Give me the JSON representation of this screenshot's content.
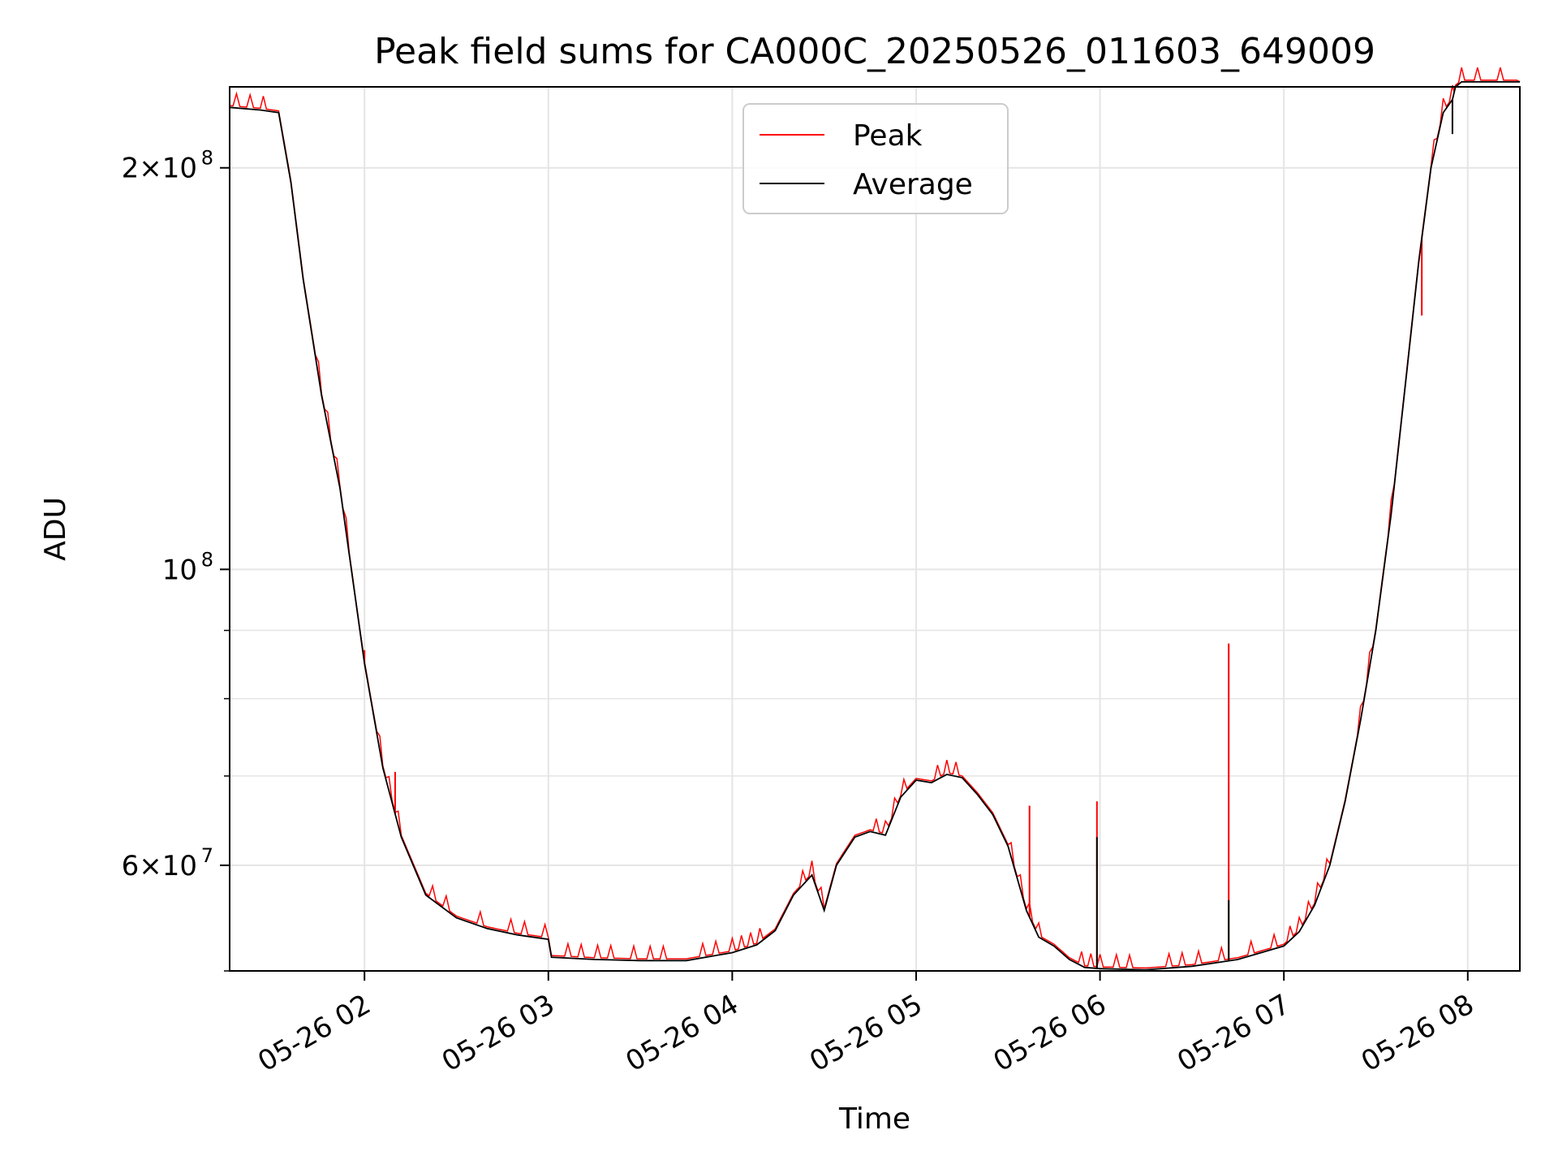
{
  "chart_data": {
    "type": "line",
    "title": "Peak field sums for CA000C_20250526_011603_649009",
    "xlabel": "Time",
    "ylabel": "ADU",
    "x_ticks": [
      {
        "time": "2025-05-26 02:00",
        "label": "05-26 02"
      },
      {
        "time": "2025-05-26 03:00",
        "label": "05-26 03"
      },
      {
        "time": "2025-05-26 04:00",
        "label": "05-26 04"
      },
      {
        "time": "2025-05-26 05:00",
        "label": "05-26 05"
      },
      {
        "time": "2025-05-26 06:00",
        "label": "05-26 06"
      },
      {
        "time": "2025-05-26 07:00",
        "label": "05-26 07"
      },
      {
        "time": "2025-05-26 08:00",
        "label": "05-26 08"
      }
    ],
    "y_ticks": [
      {
        "value": 60000000,
        "mant": "6×10",
        "exp": "7"
      },
      {
        "value": 100000000,
        "mant": "10",
        "exp": "8"
      },
      {
        "value": 200000000,
        "mant": "2×10",
        "exp": "8"
      }
    ],
    "y_minor_ticks": [
      50000000,
      70000000,
      80000000,
      90000000
    ],
    "xlim": [
      "2025-05-26 01:16",
      "2025-05-26 08:17"
    ],
    "ylim": [
      50000000,
      230000000
    ],
    "y_scale": "log",
    "grid": true,
    "legend": {
      "placement": "upper center",
      "entries": [
        "Peak",
        "Average"
      ]
    },
    "series": [
      {
        "name": "Average",
        "color": "#000000",
        "x": [
          "2025-05-26 01:16",
          "2025-05-26 01:26",
          "2025-05-26 01:32",
          "2025-05-26 01:36",
          "2025-05-26 01:40",
          "2025-05-26 01:46",
          "2025-05-26 01:52",
          "2025-05-26 02:00",
          "2025-05-26 02:06",
          "2025-05-26 02:12",
          "2025-05-26 02:20",
          "2025-05-26 02:30",
          "2025-05-26 02:40",
          "2025-05-26 02:50",
          "2025-05-26 03:00",
          "2025-05-26 03:01",
          "2025-05-26 03:15",
          "2025-05-26 03:30",
          "2025-05-26 03:45",
          "2025-05-26 04:00",
          "2025-05-26 04:08",
          "2025-05-26 04:14",
          "2025-05-26 04:20",
          "2025-05-26 04:26",
          "2025-05-26 04:30",
          "2025-05-26 04:34",
          "2025-05-26 04:40",
          "2025-05-26 04:45",
          "2025-05-26 04:50",
          "2025-05-26 04:55",
          "2025-05-26 05:00",
          "2025-05-26 05:05",
          "2025-05-26 05:10",
          "2025-05-26 05:15",
          "2025-05-26 05:20",
          "2025-05-26 05:25",
          "2025-05-26 05:30",
          "2025-05-26 05:36",
          "2025-05-26 05:40",
          "2025-05-26 05:45",
          "2025-05-26 05:50",
          "2025-05-26 05:55",
          "2025-05-26 06:00",
          "2025-05-26 06:15",
          "2025-05-26 06:30",
          "2025-05-26 06:45",
          "2025-05-26 07:00",
          "2025-05-26 07:05",
          "2025-05-26 07:10",
          "2025-05-26 07:15",
          "2025-05-26 07:20",
          "2025-05-26 07:25",
          "2025-05-26 07:30",
          "2025-05-26 07:35",
          "2025-05-26 07:40",
          "2025-05-26 07:44",
          "2025-05-26 07:48",
          "2025-05-26 07:52",
          "2025-05-26 07:55",
          "2025-05-26 07:56",
          "2025-05-26 07:58",
          "2025-05-26 08:00",
          "2025-05-26 08:17"
        ],
        "values": [
          222000000,
          221000000,
          220000000,
          195000000,
          165000000,
          135000000,
          115000000,
          85000000,
          71000000,
          63000000,
          57000000,
          54800000,
          53800000,
          53200000,
          52800000,
          51200000,
          51000000,
          50900000,
          50900000,
          51600000,
          52300000,
          53600000,
          57000000,
          59000000,
          55500000,
          60000000,
          63000000,
          63600000,
          63200000,
          67500000,
          69500000,
          69200000,
          70200000,
          69800000,
          67800000,
          65500000,
          62000000,
          55500000,
          53000000,
          52200000,
          51000000,
          50300000,
          50200000,
          50100000,
          50400000,
          51000000,
          52200000,
          53500000,
          56000000,
          60000000,
          67000000,
          77000000,
          90000000,
          110000000,
          140000000,
          170000000,
          200000000,
          220000000,
          225000000,
          230000000,
          232000000,
          232000000,
          232000000
        ],
        "spikes": [
          {
            "x": "2025-05-26 05:59",
            "value": 63000000
          },
          {
            "x": "2025-05-26 06:42",
            "value": 56500000
          },
          {
            "x": "2025-05-26 07:55",
            "value": 212000000
          }
        ]
      },
      {
        "name": "Peak",
        "color": "#ff0000",
        "note_visible": "noisy upward spikes above Average",
        "spikes": [
          {
            "x": "2025-05-26 02:00",
            "value": 87000000
          },
          {
            "x": "2025-05-26 02:10",
            "value": 70500000
          },
          {
            "x": "2025-05-26 05:37",
            "value": 66500000
          },
          {
            "x": "2025-05-26 05:59",
            "value": 67000000
          },
          {
            "x": "2025-05-26 06:42",
            "value": 88000000
          },
          {
            "x": "2025-05-26 07:45",
            "value": 155000000
          }
        ]
      }
    ]
  },
  "colors": {
    "peak": "#ff0000",
    "average": "#000000",
    "grid": "#e5e5e5",
    "axes": "#000000",
    "background": "#ffffff"
  }
}
